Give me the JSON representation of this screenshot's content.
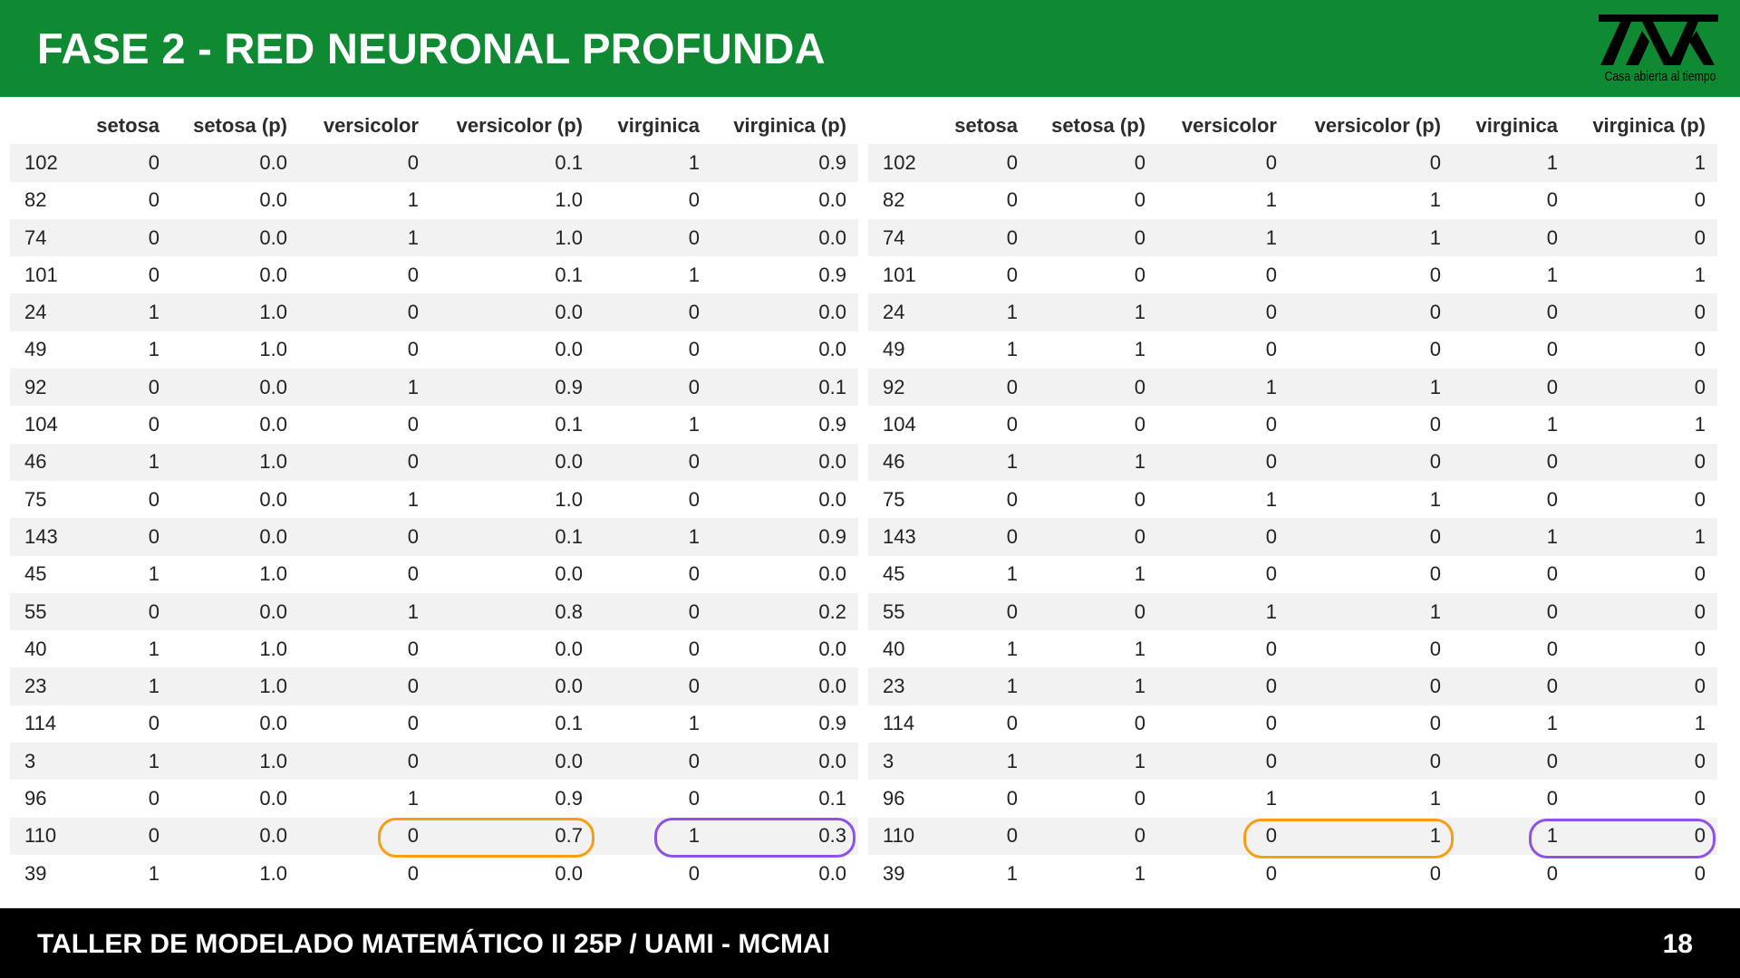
{
  "slide": {
    "title": "FASE 2 - RED NEURONAL PROFUNDA",
    "logo_caption": "Casa abierta al tiempo",
    "footer": "TALLER DE MODELADO MATEMÁTICO II 25P / UAMI - MCMAI",
    "page_number": "18"
  },
  "colors": {
    "header_green": "#0f8a32",
    "footer_black": "#000000",
    "highlight_orange": "#f59e16",
    "highlight_purple": "#8e52e6"
  },
  "left_table": {
    "columns": [
      "",
      "setosa",
      "setosa (p)",
      "versicolor",
      "versicolor (p)",
      "virginica",
      "virginica (p)"
    ],
    "rows": [
      [
        "102",
        "0",
        "0.0",
        "0",
        "0.1",
        "1",
        "0.9"
      ],
      [
        "82",
        "0",
        "0.0",
        "1",
        "1.0",
        "0",
        "0.0"
      ],
      [
        "74",
        "0",
        "0.0",
        "1",
        "1.0",
        "0",
        "0.0"
      ],
      [
        "101",
        "0",
        "0.0",
        "0",
        "0.1",
        "1",
        "0.9"
      ],
      [
        "24",
        "1",
        "1.0",
        "0",
        "0.0",
        "0",
        "0.0"
      ],
      [
        "49",
        "1",
        "1.0",
        "0",
        "0.0",
        "0",
        "0.0"
      ],
      [
        "92",
        "0",
        "0.0",
        "1",
        "0.9",
        "0",
        "0.1"
      ],
      [
        "104",
        "0",
        "0.0",
        "0",
        "0.1",
        "1",
        "0.9"
      ],
      [
        "46",
        "1",
        "1.0",
        "0",
        "0.0",
        "0",
        "0.0"
      ],
      [
        "75",
        "0",
        "0.0",
        "1",
        "1.0",
        "0",
        "0.0"
      ],
      [
        "143",
        "0",
        "0.0",
        "0",
        "0.1",
        "1",
        "0.9"
      ],
      [
        "45",
        "1",
        "1.0",
        "0",
        "0.0",
        "0",
        "0.0"
      ],
      [
        "55",
        "0",
        "0.0",
        "1",
        "0.8",
        "0",
        "0.2"
      ],
      [
        "40",
        "1",
        "1.0",
        "0",
        "0.0",
        "0",
        "0.0"
      ],
      [
        "23",
        "1",
        "1.0",
        "0",
        "0.0",
        "0",
        "0.0"
      ],
      [
        "114",
        "0",
        "0.0",
        "0",
        "0.1",
        "1",
        "0.9"
      ],
      [
        "3",
        "1",
        "1.0",
        "0",
        "0.0",
        "0",
        "0.0"
      ],
      [
        "96",
        "0",
        "0.0",
        "1",
        "0.9",
        "0",
        "0.1"
      ],
      [
        "110",
        "0",
        "0.0",
        "0",
        "0.7",
        "1",
        "0.3"
      ],
      [
        "39",
        "1",
        "1.0",
        "0",
        "0.0",
        "0",
        "0.0"
      ]
    ]
  },
  "right_table": {
    "columns": [
      "",
      "setosa",
      "setosa (p)",
      "versicolor",
      "versicolor (p)",
      "virginica",
      "virginica (p)"
    ],
    "rows": [
      [
        "102",
        "0",
        "0",
        "0",
        "0",
        "1",
        "1"
      ],
      [
        "82",
        "0",
        "0",
        "1",
        "1",
        "0",
        "0"
      ],
      [
        "74",
        "0",
        "0",
        "1",
        "1",
        "0",
        "0"
      ],
      [
        "101",
        "0",
        "0",
        "0",
        "0",
        "1",
        "1"
      ],
      [
        "24",
        "1",
        "1",
        "0",
        "0",
        "0",
        "0"
      ],
      [
        "49",
        "1",
        "1",
        "0",
        "0",
        "0",
        "0"
      ],
      [
        "92",
        "0",
        "0",
        "1",
        "1",
        "0",
        "0"
      ],
      [
        "104",
        "0",
        "0",
        "0",
        "0",
        "1",
        "1"
      ],
      [
        "46",
        "1",
        "1",
        "0",
        "0",
        "0",
        "0"
      ],
      [
        "75",
        "0",
        "0",
        "1",
        "1",
        "0",
        "0"
      ],
      [
        "143",
        "0",
        "0",
        "0",
        "0",
        "1",
        "1"
      ],
      [
        "45",
        "1",
        "1",
        "0",
        "0",
        "0",
        "0"
      ],
      [
        "55",
        "0",
        "0",
        "1",
        "1",
        "0",
        "0"
      ],
      [
        "40",
        "1",
        "1",
        "0",
        "0",
        "0",
        "0"
      ],
      [
        "23",
        "1",
        "1",
        "0",
        "0",
        "0",
        "0"
      ],
      [
        "114",
        "0",
        "0",
        "0",
        "0",
        "1",
        "1"
      ],
      [
        "3",
        "1",
        "1",
        "0",
        "0",
        "0",
        "0"
      ],
      [
        "96",
        "0",
        "0",
        "1",
        "1",
        "0",
        "0"
      ],
      [
        "110",
        "0",
        "0",
        "0",
        "1",
        "1",
        "0"
      ],
      [
        "39",
        "1",
        "1",
        "0",
        "0",
        "0",
        "0"
      ]
    ]
  }
}
